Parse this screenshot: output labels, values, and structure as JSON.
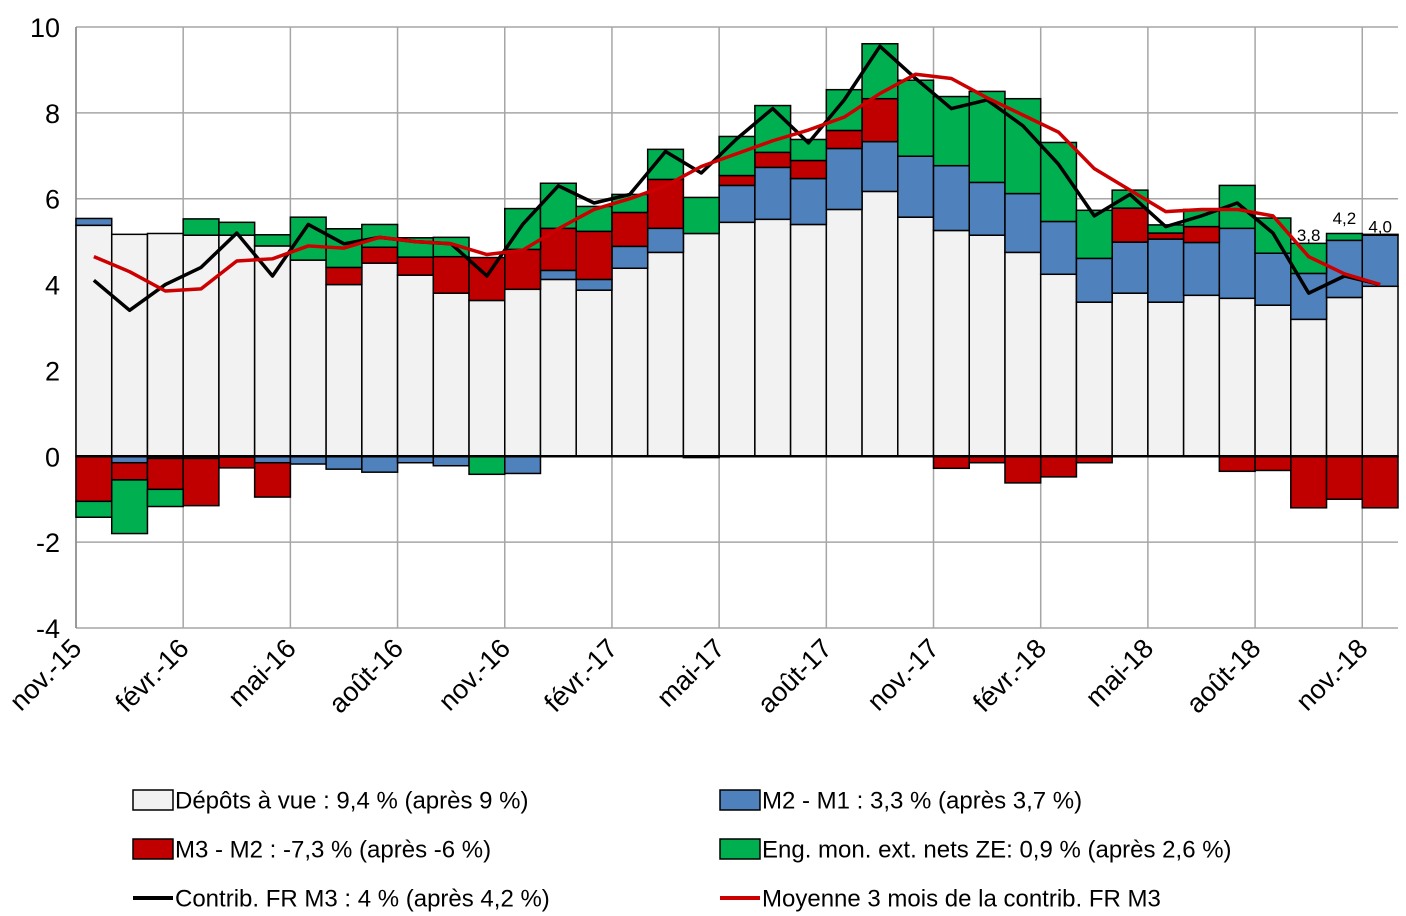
{
  "chart_data": {
    "type": "bar",
    "stacked": true,
    "grid": true,
    "categories": [
      "nov.-15",
      null,
      null,
      "févr.-16",
      null,
      null,
      "mai-16",
      null,
      null,
      "août-16",
      null,
      null,
      "nov.-16",
      null,
      null,
      "févr.-17",
      null,
      null,
      "mai-17",
      null,
      null,
      "août-17",
      null,
      null,
      "nov.-17",
      null,
      null,
      "févr.-18",
      null,
      null,
      "mai-18",
      null,
      null,
      "août-18",
      null,
      null,
      "nov.-18"
    ],
    "ylim": [
      -4,
      10
    ],
    "yticks": [
      -4,
      -2,
      0,
      2,
      4,
      6,
      8,
      10
    ],
    "series": [
      {
        "name": "Dépôts à vue : 9,4 % (après 9  %)",
        "type": "bar",
        "color": "#f2f2f2",
        "values": [
          5.38,
          5.17,
          5.19,
          5.15,
          5.15,
          4.9,
          4.57,
          4.0,
          4.5,
          4.22,
          3.8,
          3.63,
          3.89,
          4.12,
          3.87,
          4.38,
          4.75,
          5.19,
          5.45,
          5.52,
          5.4,
          5.75,
          6.17,
          5.57,
          5.26,
          5.15,
          4.75,
          4.24,
          3.59,
          3.8,
          3.59,
          3.75,
          3.68,
          3.52,
          3.19,
          3.7,
          3.96
        ]
      },
      {
        "name": "M2 - M1 : 3,3 % (après 3,7 %)",
        "type": "bar",
        "color": "#4f81bd",
        "values": [
          0.16,
          -0.15,
          -0.05,
          -0.05,
          -0.02,
          -0.15,
          -0.18,
          -0.3,
          -0.37,
          -0.15,
          -0.22,
          0,
          -0.4,
          0.21,
          0.25,
          0.51,
          0.56,
          -0.03,
          0.86,
          1.21,
          1.07,
          1.42,
          1.16,
          1.42,
          1.51,
          1.23,
          1.37,
          1.23,
          1.02,
          1.19,
          1.47,
          1.23,
          1.63,
          1.21,
          1.07,
          1.33,
          1.19
        ]
      },
      {
        "name": "M3 - M2 : -7,3 % (après -6 %)",
        "type": "bar",
        "color": "#c00000",
        "values": [
          -1.05,
          -0.4,
          -0.72,
          -1.1,
          -0.25,
          -0.8,
          0,
          0.4,
          0.37,
          0.42,
          0.85,
          1.0,
          0.93,
          0.98,
          1.12,
          0.79,
          1.14,
          0,
          0.23,
          0.35,
          0.42,
          0.42,
          1.0,
          0,
          -0.28,
          -0.15,
          -0.62,
          -0.48,
          -0.15,
          0.79,
          0.14,
          0.37,
          -0.35,
          -0.33,
          -1.2,
          -1.0,
          -1.2
        ]
      },
      {
        "name": "Eng. mon. ext. nets ZE: 0,9 % (après 2,6 %)",
        "type": "bar",
        "color": "#00b050",
        "values": [
          -0.37,
          -1.25,
          -0.4,
          0.38,
          0.3,
          0.26,
          1.0,
          0.9,
          0.53,
          0.45,
          0.45,
          -0.42,
          0.95,
          1.05,
          0.58,
          0.42,
          0.7,
          0.84,
          0.91,
          1.09,
          0.49,
          0.95,
          1.28,
          1.77,
          1.61,
          2.12,
          2.21,
          1.84,
          1.12,
          0.42,
          0.19,
          0.4,
          1.0,
          0.82,
          0.7,
          0.16,
          0.02
        ]
      },
      {
        "name": "Contrib. FR M3 : 4 % (après 4,2 %)",
        "type": "line",
        "color": "#000000",
        "values": [
          4.1,
          3.4,
          4.0,
          4.4,
          5.2,
          4.2,
          5.4,
          4.95,
          5.1,
          5.0,
          4.95,
          4.2,
          5.4,
          6.3,
          5.9,
          6.1,
          7.1,
          6.6,
          7.4,
          8.1,
          7.3,
          8.3,
          9.55,
          8.8,
          8.1,
          8.3,
          7.7,
          6.8,
          5.6,
          6.1,
          5.35,
          5.6,
          5.9,
          5.2,
          3.8,
          4.2,
          4.0
        ],
        "value_labels": [
          null,
          null,
          null,
          null,
          null,
          null,
          null,
          null,
          null,
          null,
          null,
          null,
          null,
          null,
          null,
          null,
          null,
          null,
          null,
          null,
          null,
          null,
          null,
          null,
          null,
          null,
          null,
          null,
          null,
          null,
          null,
          null,
          null,
          null,
          "3,8",
          "4,2",
          "4,0"
        ]
      },
      {
        "name": "Moyenne 3 mois de la contrib. FR M3",
        "type": "line",
        "color": "#cc0000",
        "values": [
          4.65,
          4.3,
          3.85,
          3.9,
          4.55,
          4.6,
          4.9,
          4.85,
          5.1,
          5.0,
          4.95,
          4.7,
          4.8,
          5.3,
          5.75,
          6.0,
          6.3,
          6.75,
          7.05,
          7.35,
          7.6,
          7.9,
          8.45,
          8.9,
          8.8,
          8.35,
          7.95,
          7.55,
          6.7,
          6.2,
          5.7,
          5.75,
          5.75,
          5.6,
          4.65,
          4.25,
          4.0
        ]
      }
    ]
  }
}
